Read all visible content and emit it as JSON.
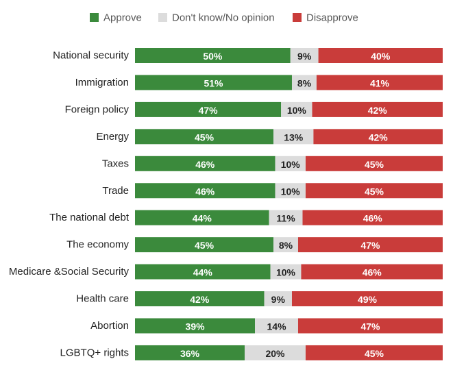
{
  "chart_data": {
    "type": "bar",
    "stacked": true,
    "orientation": "horizontal",
    "categories": [
      "National security",
      "Immigration",
      "Foreign policy",
      "Energy",
      "Taxes",
      "Trade",
      "The national debt",
      "The economy",
      "Medicare &Social Security",
      "Health care",
      "Abortion",
      "LGBTQ+ rights"
    ],
    "series": [
      {
        "name": "Approve",
        "color": "#3b8a3c",
        "text_color": "#ffffff",
        "values": [
          50,
          51,
          47,
          45,
          46,
          46,
          44,
          45,
          44,
          42,
          39,
          36
        ]
      },
      {
        "name": "Don't know/No opinion",
        "color": "#dcdcdc",
        "text_color": "#222222",
        "values": [
          9,
          8,
          10,
          13,
          10,
          10,
          11,
          8,
          10,
          9,
          14,
          20
        ]
      },
      {
        "name": "Disapprove",
        "color": "#c93c3a",
        "text_color": "#ffffff",
        "values": [
          40,
          41,
          42,
          42,
          45,
          45,
          46,
          47,
          46,
          49,
          47,
          45
        ]
      }
    ],
    "value_suffix": "%",
    "legend_position": "top",
    "title": "",
    "xlabel": "",
    "ylabel": ""
  }
}
